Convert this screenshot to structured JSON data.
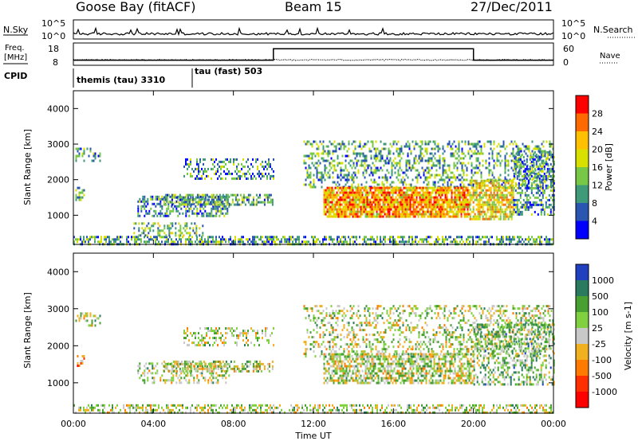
{
  "header": {
    "station": "Goose Bay (fitACF)",
    "beam": "Beam 15",
    "date": "27/Dec/2011"
  },
  "sky_panel": {
    "left_label": "N.Sky",
    "right_label": "N.Search",
    "left_ticks": [
      "10^5",
      "10^0"
    ],
    "right_ticks": [
      "10^5",
      "10^0"
    ]
  },
  "freq_panel": {
    "left_label_line1": "Freq.",
    "left_label_line2": "[MHz]",
    "right_label": "Nave",
    "left_ticks": [
      "18",
      "8"
    ],
    "right_ticks": [
      "60",
      "0"
    ],
    "nave_step": [
      [
        0,
        0.2
      ],
      [
        10,
        0.2
      ],
      [
        10,
        0.85
      ],
      [
        20,
        0.85
      ],
      [
        20,
        0.2
      ],
      [
        24,
        0.2
      ]
    ]
  },
  "cpid": {
    "label": "CPID",
    "programs": [
      {
        "name": "themis (tau) 3310",
        "start_hour": 0
      },
      {
        "name": "tau (fast) 503",
        "start_hour": 6
      }
    ]
  },
  "power_colorbar": {
    "label": "Power [dB]",
    "ticks": [
      "28",
      "24",
      "20",
      "16",
      "12",
      "8",
      "4"
    ],
    "colors": [
      "#ff0000",
      "#ff6a00",
      "#ffc000",
      "#d8e000",
      "#78c848",
      "#3e9a78",
      "#2a55b0",
      "#0000ff"
    ]
  },
  "velocity_colorbar": {
    "label": "Velocity [m s-1]",
    "ticks": [
      "1000",
      "500",
      "100",
      "25",
      "-25",
      "-100",
      "-500",
      "-1000"
    ],
    "colors": [
      "#2040c0",
      "#2a7a60",
      "#48a030",
      "#80d040",
      "#c8c8c8",
      "#f0b020",
      "#ff7a00",
      "#ff3000",
      "#ff0000"
    ]
  },
  "chart_data": {
    "type": "heatmap",
    "xlabel": "Time UT",
    "x_ticks": [
      "00:00",
      "04:00",
      "08:00",
      "12:00",
      "16:00",
      "20:00",
      "00:00"
    ],
    "x_range_hours": [
      0,
      24
    ],
    "ylabel": "Slant Range [km]",
    "y_ticks": [
      4000,
      3000,
      2000,
      1000
    ],
    "y_range_km": [
      180,
      4500
    ],
    "panels": [
      {
        "name": "power",
        "units": "dB",
        "scatter_regions": [
          {
            "t0": 0.0,
            "t1": 24.0,
            "r0": 200,
            "r1": 420,
            "level": 0.35,
            "density": 0.55
          },
          {
            "t0": 0.1,
            "t1": 1.3,
            "r0": 2500,
            "r1": 2900,
            "level": 0.3,
            "density": 0.35
          },
          {
            "t0": 0.1,
            "t1": 0.6,
            "r0": 1400,
            "r1": 1800,
            "level": 0.35,
            "density": 0.5
          },
          {
            "t0": 3.2,
            "t1": 7.8,
            "r0": 1000,
            "r1": 1550,
            "level": 0.3,
            "density": 0.45
          },
          {
            "t0": 4.5,
            "t1": 10.0,
            "r0": 1300,
            "r1": 1600,
            "level": 0.35,
            "density": 0.6
          },
          {
            "t0": 5.5,
            "t1": 10.0,
            "r0": 2000,
            "r1": 2600,
            "level": 0.3,
            "density": 0.35
          },
          {
            "t0": 3.0,
            "t1": 6.5,
            "r0": 430,
            "r1": 800,
            "level": 0.4,
            "density": 0.35
          },
          {
            "t0": 11.5,
            "t1": 24.0,
            "r0": 1800,
            "r1": 3100,
            "level": 0.35,
            "density": 0.35
          },
          {
            "t0": 12.5,
            "t1": 19.8,
            "r0": 950,
            "r1": 1800,
            "level": 0.72,
            "density": 0.85
          },
          {
            "t0": 19.8,
            "t1": 22.0,
            "r0": 900,
            "r1": 2000,
            "level": 0.6,
            "density": 0.7
          },
          {
            "t0": 22.0,
            "t1": 24.0,
            "r0": 1000,
            "r1": 2800,
            "level": 0.3,
            "density": 0.45
          }
        ]
      },
      {
        "name": "velocity",
        "units": "m s-1",
        "scatter_regions": [
          {
            "t0": 0.0,
            "t1": 24.0,
            "r0": 200,
            "r1": 420,
            "level": 0.45,
            "density": 0.45
          },
          {
            "t0": 0.1,
            "t1": 1.3,
            "r0": 2550,
            "r1": 2900,
            "level": 0.45,
            "density": 0.3
          },
          {
            "t0": 0.1,
            "t1": 0.5,
            "r0": 1450,
            "r1": 1750,
            "level": 0.7,
            "density": 0.5
          },
          {
            "t0": 3.2,
            "t1": 7.8,
            "r0": 1000,
            "r1": 1550,
            "level": 0.45,
            "density": 0.35
          },
          {
            "t0": 4.5,
            "t1": 10.0,
            "r0": 1300,
            "r1": 1600,
            "level": 0.45,
            "density": 0.5
          },
          {
            "t0": 5.5,
            "t1": 10.0,
            "r0": 2000,
            "r1": 2500,
            "level": 0.45,
            "density": 0.3
          },
          {
            "t0": 11.5,
            "t1": 24.0,
            "r0": 1700,
            "r1": 3100,
            "level": 0.45,
            "density": 0.3
          },
          {
            "t0": 12.5,
            "t1": 20.0,
            "r0": 1000,
            "r1": 1800,
            "level": 0.45,
            "density": 0.6
          },
          {
            "t0": 20.0,
            "t1": 24.0,
            "r0": 950,
            "r1": 2600,
            "level": 0.35,
            "density": 0.4
          }
        ]
      }
    ]
  }
}
